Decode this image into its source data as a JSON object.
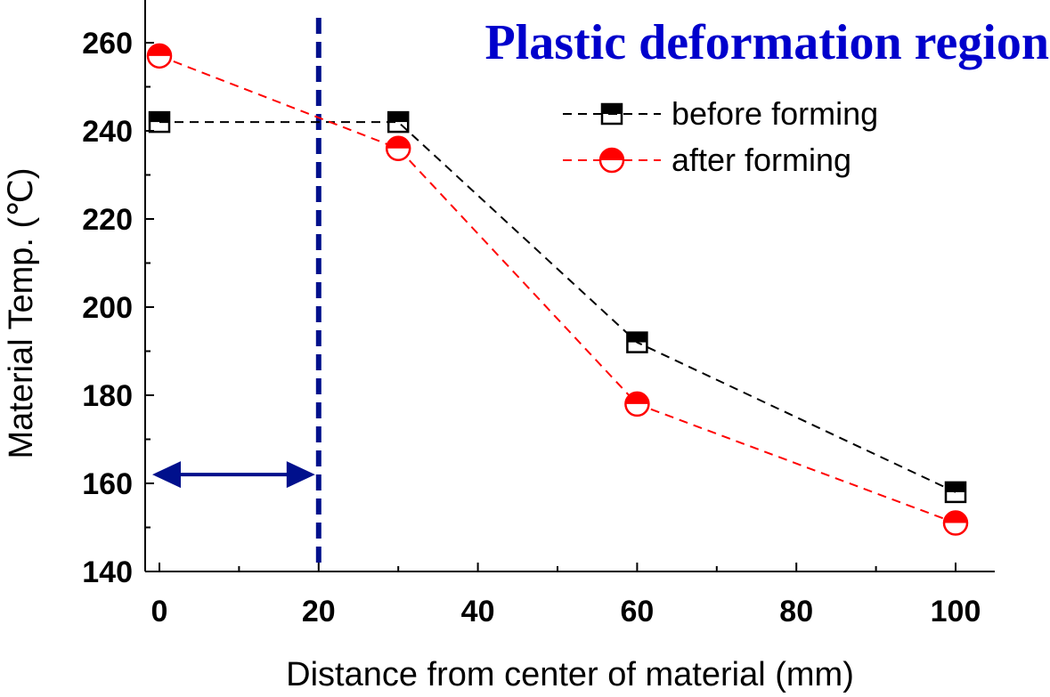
{
  "chart_data": {
    "type": "line",
    "title": "Plastic deformation region",
    "xlabel": "Distance from center of material (mm)",
    "ylabel": "Material Temp. (℃)",
    "xlim": [
      -1.5,
      105.5
    ],
    "ylim": [
      140,
      270
    ],
    "x_ticks": [
      0,
      20,
      40,
      60,
      80,
      100
    ],
    "y_ticks": [
      140,
      160,
      180,
      200,
      220,
      240,
      260
    ],
    "grid": false,
    "legend_position": "top-right",
    "series": [
      {
        "name": "before forming",
        "color": "#000000",
        "marker": "half-filled-square",
        "x": [
          0,
          30,
          60,
          100
        ],
        "y": [
          242,
          242,
          192,
          158
        ]
      },
      {
        "name": "after forming",
        "color": "#ff0000",
        "marker": "half-filled-circle",
        "x": [
          0,
          30,
          60,
          100
        ],
        "y": [
          257,
          236,
          178,
          151
        ]
      }
    ],
    "annotations": {
      "boundary_x": 20,
      "boundary_color": "#00108c",
      "arrow": {
        "from_x": 0,
        "to_x": 20,
        "y": 162,
        "color": "#00108c"
      }
    }
  }
}
